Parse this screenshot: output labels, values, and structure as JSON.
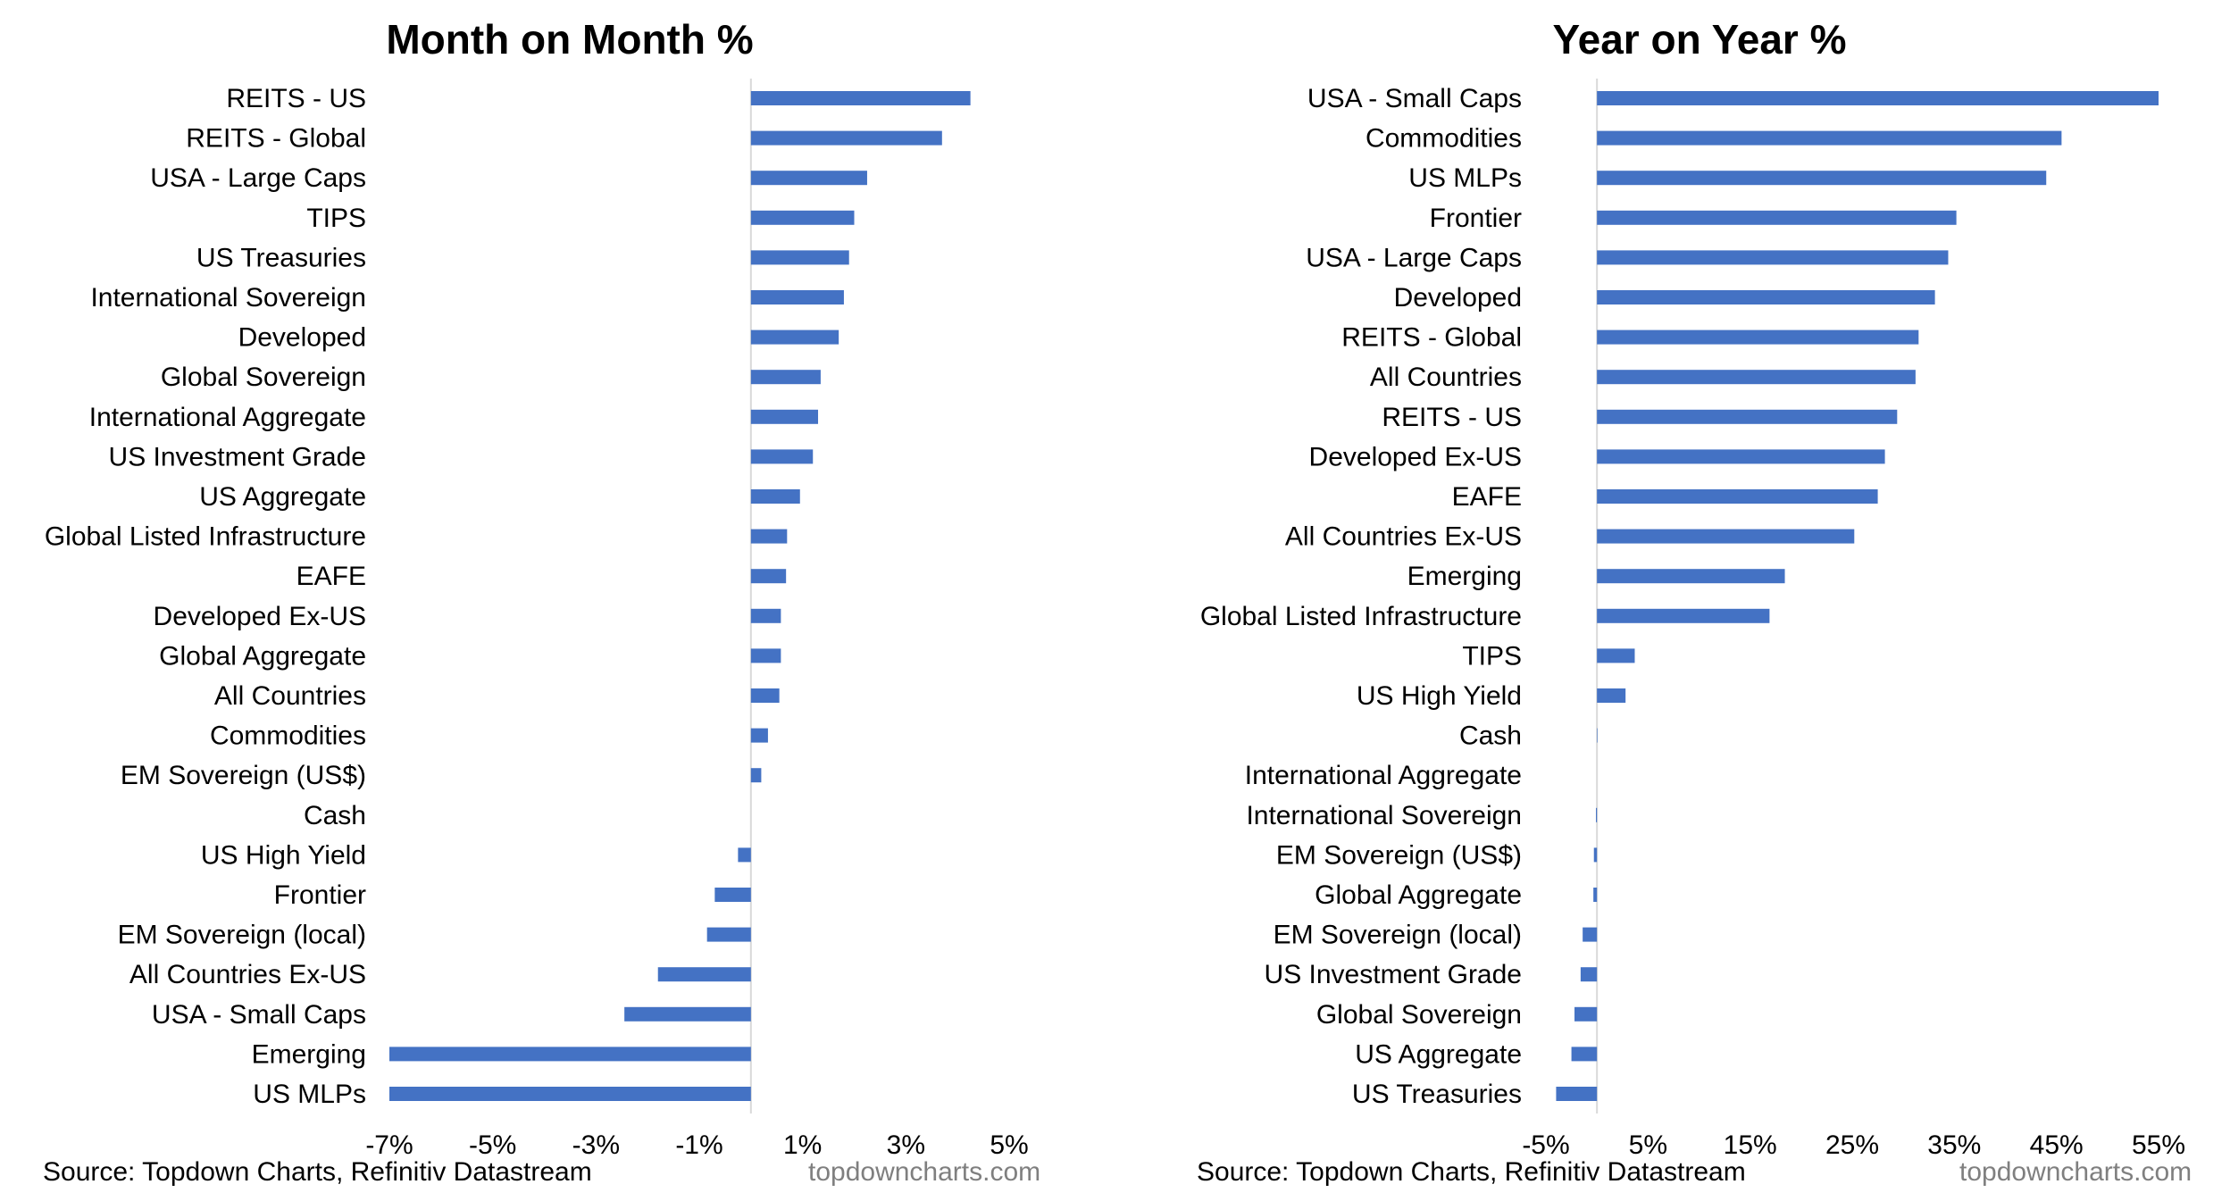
{
  "colors": {
    "bar": "#4472C4",
    "axis": "#d9d9d9",
    "text": "#000000",
    "brand": "#7f7f7f"
  },
  "chart_data": [
    {
      "type": "bar",
      "orientation": "horizontal",
      "title": "Month on Month %",
      "xlim": [
        -7,
        5
      ],
      "xticks": [
        -7,
        -5,
        -3,
        -1,
        1,
        3,
        5
      ],
      "xtick_labels": [
        "-7%",
        "-5%",
        "-3%",
        "-1%",
        "1%",
        "3%",
        "5%"
      ],
      "grid": false,
      "categories": [
        "REITS - US",
        "REITS - Global",
        "USA - Large Caps",
        "TIPS",
        "US Treasuries",
        "International Sovereign",
        "Developed",
        "Global Sovereign",
        "International Aggregate",
        "US Investment Grade",
        "US Aggregate",
        "Global Listed Infrastructure",
        "EAFE",
        "Developed Ex-US",
        "Global Aggregate",
        "All Countries",
        "Commodities",
        "EM Sovereign (US$)",
        "Cash",
        "US High Yield",
        "Frontier",
        "EM Sovereign (local)",
        "All Countries Ex-US",
        "USA - Small Caps",
        "Emerging",
        "US MLPs"
      ],
      "values": [
        4.25,
        3.7,
        2.25,
        2.0,
        1.9,
        1.8,
        1.7,
        1.35,
        1.3,
        1.2,
        0.95,
        0.7,
        0.68,
        0.58,
        0.58,
        0.55,
        0.33,
        0.2,
        0.0,
        -0.25,
        -0.7,
        -0.85,
        -1.8,
        -2.45,
        -7.0,
        -7.0
      ],
      "source": "Source: Topdown Charts, Refinitiv Datastream",
      "brand": "topdowncharts.com"
    },
    {
      "type": "bar",
      "orientation": "horizontal",
      "title": "Year on Year %",
      "xlim": [
        -5,
        55
      ],
      "xticks": [
        -5,
        5,
        15,
        25,
        35,
        45,
        55
      ],
      "xtick_labels": [
        "-5%",
        "5%",
        "15%",
        "25%",
        "35%",
        "45%",
        "55%"
      ],
      "grid": false,
      "categories": [
        "USA - Small Caps",
        "Commodities",
        "US MLPs",
        "Frontier",
        "USA - Large Caps",
        "Developed",
        "REITS - Global",
        "All Countries",
        "REITS - US",
        "Developed Ex-US",
        "EAFE",
        "All Countries Ex-US",
        "Emerging",
        "Global Listed Infrastructure",
        "TIPS",
        "US High Yield",
        "Cash",
        "International Aggregate",
        "International Sovereign",
        "EM Sovereign (US$)",
        "Global Aggregate",
        "EM Sovereign (local)",
        "US Investment Grade",
        "Global Sovereign",
        "US Aggregate",
        "US Treasuries"
      ],
      "values": [
        55.0,
        45.5,
        44.0,
        35.2,
        34.4,
        33.1,
        31.5,
        31.2,
        29.4,
        28.2,
        27.5,
        25.2,
        18.4,
        16.9,
        3.7,
        2.8,
        0.05,
        0.0,
        -0.1,
        -0.3,
        -0.35,
        -1.4,
        -1.6,
        -2.2,
        -2.5,
        -4.0
      ],
      "source": "Source: Topdown Charts, Refinitiv Datastream",
      "brand": "topdowncharts.com"
    }
  ]
}
